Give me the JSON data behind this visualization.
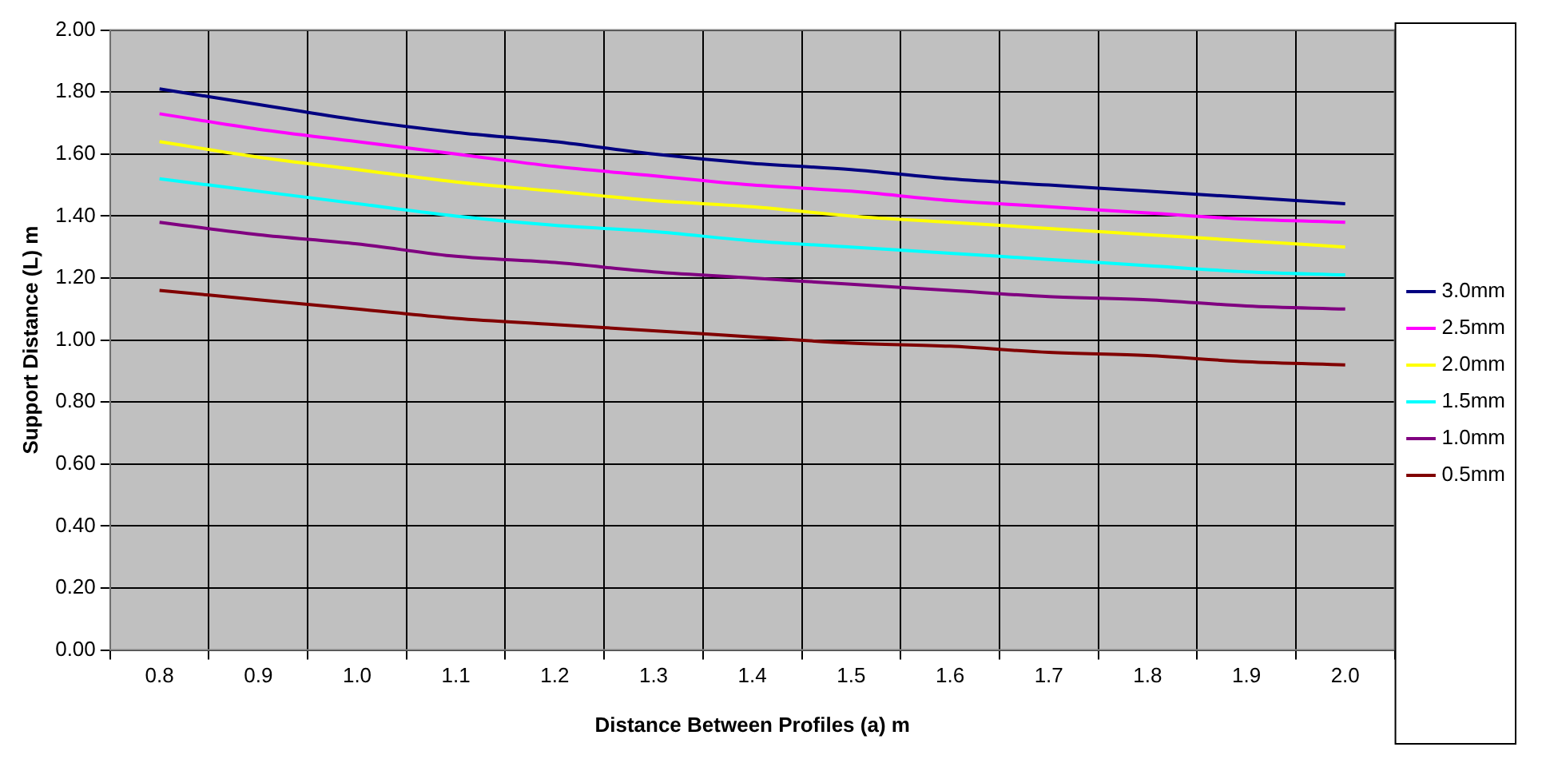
{
  "chart_data": {
    "type": "line",
    "xlabel": "Distance Between Profiles (a) m",
    "ylabel": "Support Distance (L) m",
    "categories": [
      "0.8",
      "0.9",
      "1.0",
      "1.1",
      "1.2",
      "1.3",
      "1.4",
      "1.5",
      "1.6",
      "1.7",
      "1.8",
      "1.9",
      "2.0"
    ],
    "series": [
      {
        "name": "3.0mm",
        "color": "#000080",
        "values": [
          1.81,
          1.76,
          1.71,
          1.67,
          1.64,
          1.6,
          1.57,
          1.55,
          1.52,
          1.5,
          1.48,
          1.46,
          1.44
        ]
      },
      {
        "name": "2.5mm",
        "color": "#ff00ff",
        "values": [
          1.73,
          1.68,
          1.64,
          1.6,
          1.56,
          1.53,
          1.5,
          1.48,
          1.45,
          1.43,
          1.41,
          1.39,
          1.38
        ]
      },
      {
        "name": "2.0mm",
        "color": "#ffff00",
        "values": [
          1.64,
          1.59,
          1.55,
          1.51,
          1.48,
          1.45,
          1.43,
          1.4,
          1.38,
          1.36,
          1.34,
          1.32,
          1.3
        ]
      },
      {
        "name": "1.5mm",
        "color": "#00ffff",
        "values": [
          1.52,
          1.48,
          1.44,
          1.4,
          1.37,
          1.35,
          1.32,
          1.3,
          1.28,
          1.26,
          1.24,
          1.22,
          1.21
        ]
      },
      {
        "name": "1.0mm",
        "color": "#800080",
        "values": [
          1.38,
          1.34,
          1.31,
          1.27,
          1.25,
          1.22,
          1.2,
          1.18,
          1.16,
          1.14,
          1.13,
          1.11,
          1.1
        ]
      },
      {
        "name": "0.5mm",
        "color": "#800000",
        "values": [
          1.16,
          1.13,
          1.1,
          1.07,
          1.05,
          1.03,
          1.01,
          0.99,
          0.98,
          0.96,
          0.95,
          0.93,
          0.92
        ]
      }
    ],
    "ylim": [
      0,
      2
    ],
    "yticks": [
      {
        "value": 0,
        "label": "0.00"
      },
      {
        "value": 0.2,
        "label": "0.20"
      },
      {
        "value": 0.4,
        "label": "0.40"
      },
      {
        "value": 0.6,
        "label": "0.60"
      },
      {
        "value": 0.8,
        "label": "0.80"
      },
      {
        "value": 1,
        "label": "1.00"
      },
      {
        "value": 1.2,
        "label": "1.20"
      },
      {
        "value": 1.4,
        "label": "1.40"
      },
      {
        "value": 1.6,
        "label": "1.60"
      },
      {
        "value": 1.8,
        "label": "1.80"
      },
      {
        "value": 2,
        "label": "2.00"
      }
    ],
    "grid": true,
    "legend": "right",
    "marker": "none",
    "line_style": "solid"
  }
}
